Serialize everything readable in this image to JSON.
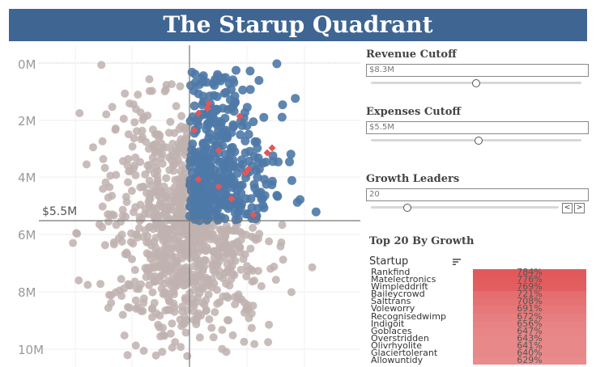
{
  "header": {
    "title": "The Starup Quadrant"
  },
  "colors": {
    "banner": "#3f6592",
    "leader": "#4e79a7",
    "other": "#bfb2af",
    "highlight": "#e15759"
  },
  "scatter": {
    "y_axis_labels": [
      "0M",
      "2M",
      "4M",
      "6M",
      "8M",
      "10M"
    ],
    "expenses_cutoff_label": "$5.5M"
  },
  "controls": {
    "revenue": {
      "title": "Revenue Cutoff",
      "value": "$8.3M"
    },
    "expenses": {
      "title": "Expenses Cutoff",
      "value": "$5.5M"
    },
    "growth": {
      "title": "Growth Leaders",
      "value": "20",
      "prev_label": "<",
      "next_label": ">"
    }
  },
  "table": {
    "title": "Top 20 By Growth",
    "column_header": "Startup",
    "rows": [
      {
        "name": "Rankfind",
        "growth": "784%"
      },
      {
        "name": "Matelectronics",
        "growth": "776%"
      },
      {
        "name": "Wimpleddrift",
        "growth": "769%"
      },
      {
        "name": "Baileycrowd",
        "growth": "721%"
      },
      {
        "name": "Salttrans",
        "growth": "708%"
      },
      {
        "name": "Voleworry",
        "growth": "691%"
      },
      {
        "name": "Recognisedwimp",
        "growth": "672%"
      },
      {
        "name": "Indigoit",
        "growth": "656%"
      },
      {
        "name": "Goblaces",
        "growth": "647%"
      },
      {
        "name": "Overstridden",
        "growth": "643%"
      },
      {
        "name": "Olivrhyolite",
        "growth": "641%"
      },
      {
        "name": "Glaciertolerant",
        "growth": "640%"
      },
      {
        "name": "Allowuntidy",
        "growth": "629%"
      }
    ]
  }
}
